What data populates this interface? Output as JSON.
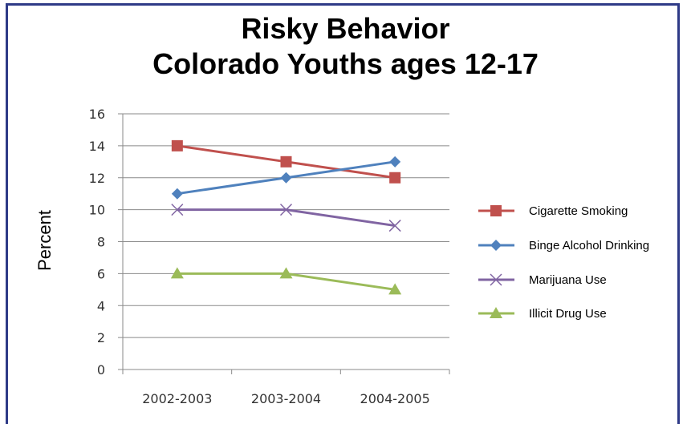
{
  "chart_data": {
    "type": "line",
    "title_line1": "Risky Behavior",
    "title_line2": "Colorado Youths ages 12-17",
    "xlabel": "",
    "ylabel": "Percent",
    "categories": [
      "2002-2003",
      "2003-2004",
      "2004-2005"
    ],
    "ylim": [
      0,
      16
    ],
    "yticks": [
      "0",
      "2",
      "4",
      "6",
      "8",
      "10",
      "12",
      "14",
      "16"
    ],
    "grid": true,
    "legend_position": "right",
    "series": [
      {
        "name": "Cigarette Smoking",
        "values": [
          14,
          13,
          12
        ],
        "color": "#c0504d",
        "marker": "square"
      },
      {
        "name": "Binge Alcohol Drinking",
        "values": [
          11,
          12,
          13
        ],
        "color": "#4f81bd",
        "marker": "diamond"
      },
      {
        "name": "Marijuana Use",
        "values": [
          10,
          10,
          9
        ],
        "color": "#8064a2",
        "marker": "x"
      },
      {
        "name": "Illicit Drug Use",
        "values": [
          6,
          6,
          5
        ],
        "color": "#9bbb59",
        "marker": "triangle"
      }
    ]
  }
}
